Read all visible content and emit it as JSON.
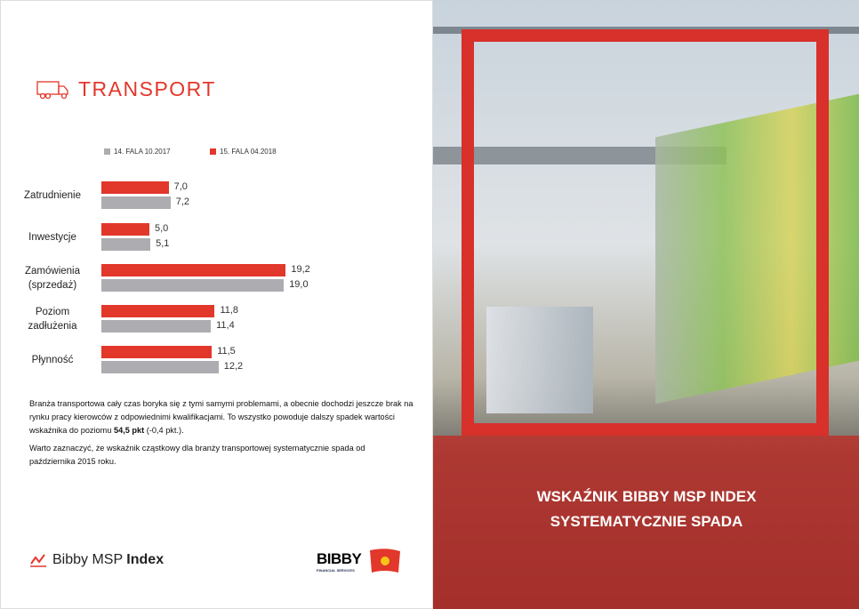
{
  "header": {
    "icon": "truck-icon",
    "title": "TRANSPORT"
  },
  "chart_data": {
    "type": "bar",
    "orientation": "horizontal",
    "categories": [
      "Zatrudnienie",
      "Inwestycje",
      "Zamówienia (sprzedaż)",
      "Poziom zadłużenia",
      "Płynność"
    ],
    "series": [
      {
        "name": "15. FALA 04.2018",
        "color": "#e2372b",
        "values": [
          7.0,
          5.0,
          19.2,
          11.8,
          11.5
        ],
        "labels": [
          "7,0",
          "5,0",
          "19,2",
          "11,8",
          "11,5"
        ]
      },
      {
        "name": "14. FALA 10.2017",
        "color": "#adadb1",
        "values": [
          7.2,
          5.1,
          19.0,
          11.4,
          12.2
        ],
        "labels": [
          "7,2",
          "5,1",
          "19,0",
          "11,4",
          "12,2"
        ]
      }
    ],
    "legend_order": [
      "14. FALA 10.2017",
      "15. FALA 04.2018"
    ],
    "legend": "top",
    "grid": false
  },
  "text": {
    "p1a": "Branża transportowa cały czas boryka się z tymi samymi problemami, a obecnie dochodzi jeszcze brak na rynku pracy kierowców z odpowiednimi kwalifikacjami. To wszystko powoduje dalszy spadek wartości wskaźnika do poziomu ",
    "p1b": "54,5 pkt",
    "p1c": " (-0,4 pkt.).",
    "p2": "Warto zaznaczyć, że wskaźnik cząstkowy dla branży transportowej systematycznie spada od października 2015 roku."
  },
  "footer": {
    "brand_light": "Bibby ",
    "brand_mid": "MSP ",
    "brand_bold": "Index",
    "logo": "BIBBY",
    "logo_sub": "FINANCIAL SERVICES"
  },
  "photo": {
    "caption_line1": "WSKAŹNIK BIBBY MSP INDEX",
    "caption_line2": "SYSTEMATYCZNIE SPADA"
  }
}
